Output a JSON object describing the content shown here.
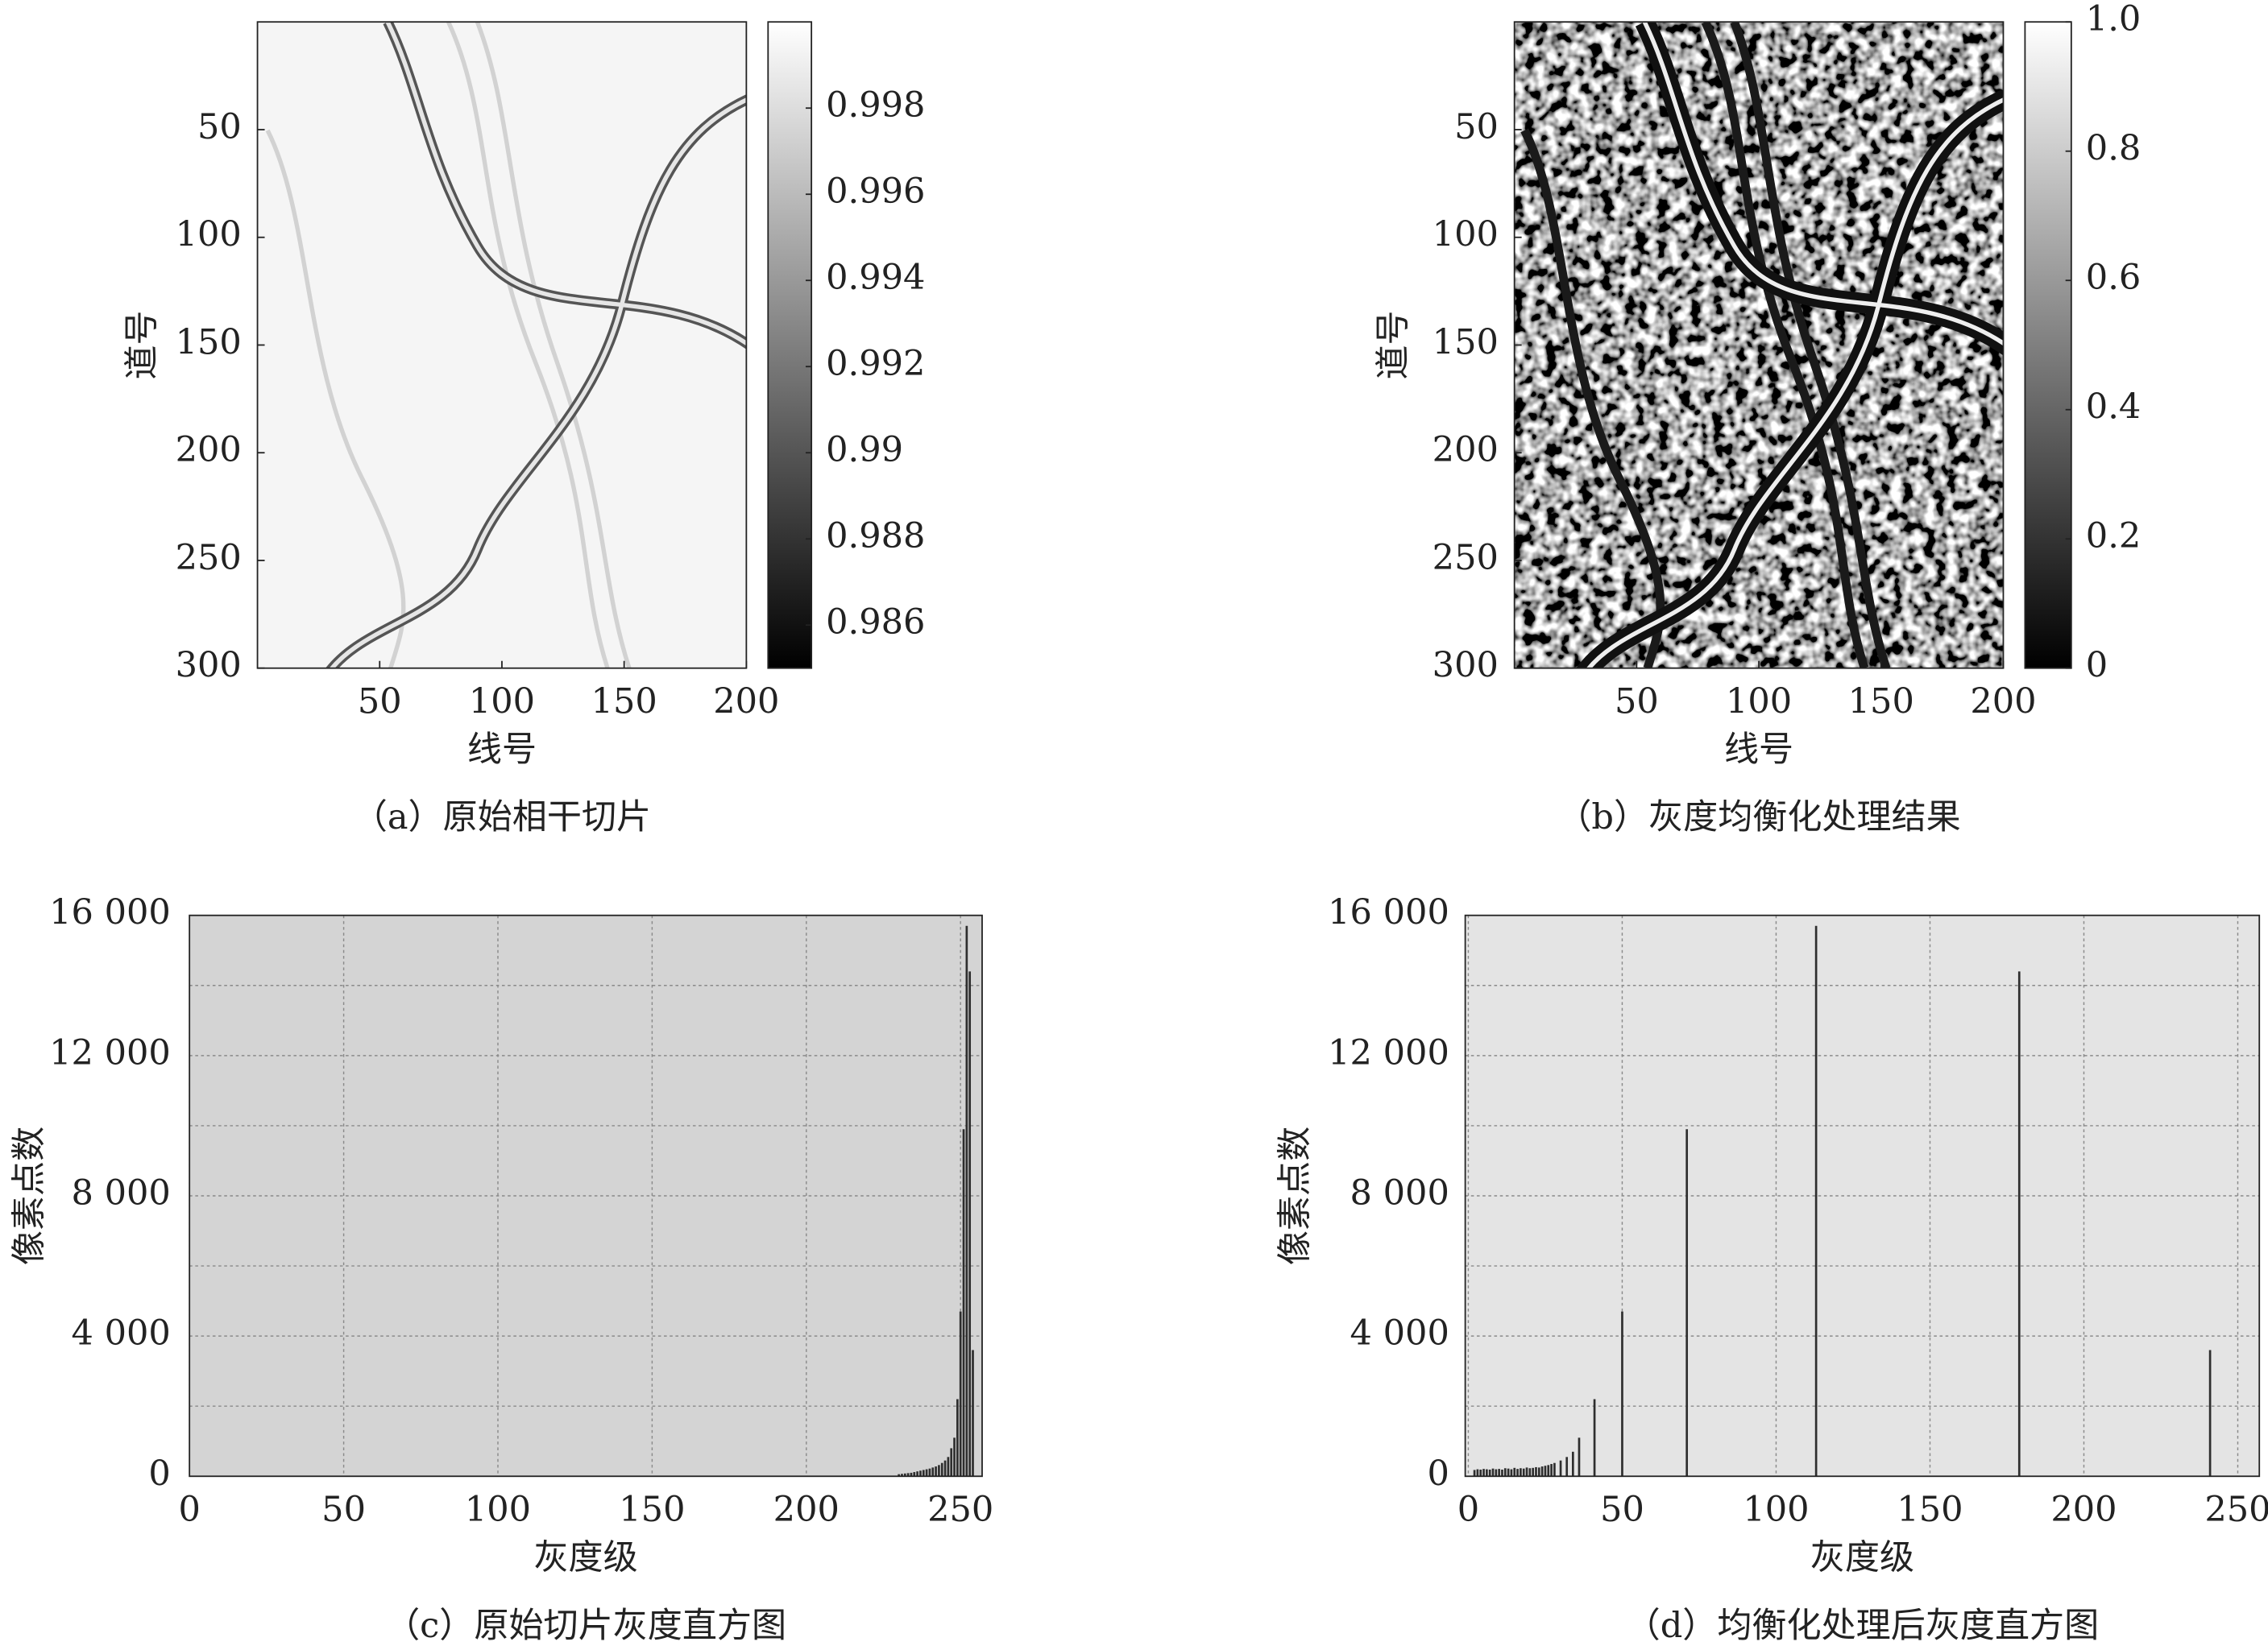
{
  "chart_data": [
    {
      "type": "image",
      "caption": "（a）原始相干切片",
      "x_label": "线号",
      "y_label": "道号",
      "xlim": [
        0,
        200
      ],
      "ylim": [
        0,
        300
      ],
      "xticks": [
        50,
        100,
        150,
        200
      ],
      "yticks": [
        50,
        100,
        150,
        200,
        250,
        300
      ],
      "clim": [
        0.985,
        1.0
      ],
      "cticks": [
        0.986,
        0.988,
        0.99,
        0.992,
        0.994,
        0.996,
        0.998
      ],
      "colormap": "gray"
    },
    {
      "type": "image",
      "caption": "（b）灰度均衡化处理结果",
      "x_label": "线号",
      "y_label": "道号",
      "xlim": [
        0,
        200
      ],
      "ylim": [
        0,
        300
      ],
      "xticks": [
        50,
        100,
        150,
        200
      ],
      "yticks": [
        50,
        100,
        150,
        200,
        250,
        300
      ],
      "clim": [
        0,
        1
      ],
      "cticks": [
        0,
        0.2,
        0.4,
        0.6,
        0.8,
        {
          "value": 1,
          "label": "1.0"
        }
      ],
      "colormap": "gray"
    },
    {
      "type": "bar",
      "caption": "（c）原始切片灰度直方图",
      "x_label": "灰度级",
      "y_label": "像素点数",
      "xlim": [
        0,
        257
      ],
      "ylim": [
        0,
        16000
      ],
      "xticks": [
        0,
        50,
        100,
        150,
        200,
        250
      ],
      "yticks": [
        0,
        {
          "value": 4000,
          "label": "4 000"
        },
        {
          "value": 8000,
          "label": "8 000"
        },
        {
          "value": 12000,
          "label": "12 000"
        },
        {
          "value": 16000,
          "label": "16 000"
        }
      ],
      "minor_yticks": [
        2000,
        6000,
        10000,
        14000
      ],
      "grid": true,
      "background": "#d4d4d4",
      "color": "#2e2e2e",
      "x": [
        230,
        231,
        232,
        233,
        234,
        235,
        236,
        237,
        238,
        239,
        240,
        241,
        242,
        243,
        244,
        245,
        246,
        247,
        248,
        249,
        250,
        251,
        252,
        253,
        254
      ],
      "values": [
        60,
        70,
        80,
        90,
        100,
        120,
        140,
        160,
        180,
        200,
        220,
        250,
        280,
        320,
        380,
        450,
        550,
        800,
        1100,
        2200,
        4700,
        9900,
        15700,
        14400,
        3600
      ]
    },
    {
      "type": "bar",
      "caption": "（d）均衡化处理后灰度直方图",
      "x_label": "灰度级",
      "y_label": "像素点数",
      "xlim": [
        -1,
        257
      ],
      "ylim": [
        0,
        16000
      ],
      "xticks": [
        0,
        50,
        100,
        150,
        200,
        250
      ],
      "yticks": [
        0,
        {
          "value": 4000,
          "label": "4 000"
        },
        {
          "value": 8000,
          "label": "8 000"
        },
        {
          "value": 12000,
          "label": "12 000"
        },
        {
          "value": 16000,
          "label": "16 000"
        }
      ],
      "minor_yticks": [
        2000,
        6000,
        10000,
        14000
      ],
      "grid": true,
      "background": "#e4e4e4",
      "color": "#2e2e2e",
      "x": [
        2,
        3,
        4,
        5,
        6,
        7,
        8,
        9,
        10,
        11,
        12,
        13,
        14,
        15,
        16,
        17,
        18,
        19,
        20,
        21,
        22,
        23,
        24,
        25,
        26,
        27,
        28,
        30,
        32,
        34,
        36,
        41,
        50,
        71,
        113,
        179,
        241
      ],
      "values": [
        180,
        200,
        190,
        210,
        200,
        190,
        220,
        200,
        210,
        190,
        230,
        220,
        200,
        240,
        210,
        230,
        220,
        250,
        230,
        240,
        260,
        250,
        280,
        300,
        320,
        350,
        380,
        450,
        550,
        700,
        1100,
        2200,
        4700,
        9900,
        15700,
        14400,
        3600
      ]
    }
  ]
}
